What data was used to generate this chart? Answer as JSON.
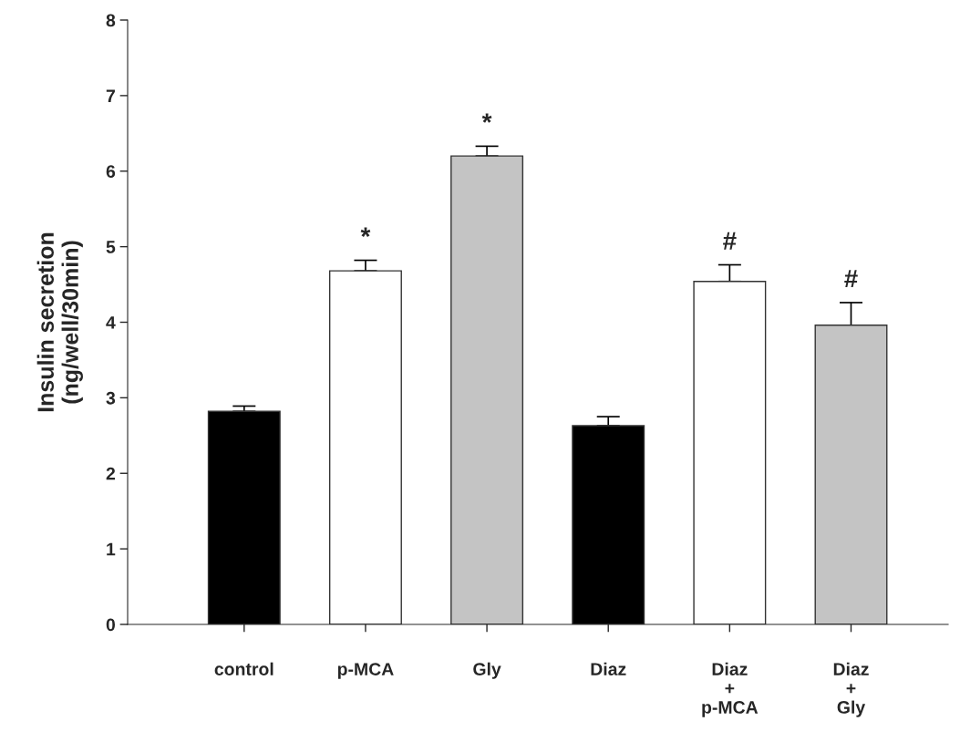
{
  "chart_data": {
    "type": "bar",
    "ylabel": "Insulin secretion\n(ng/well/30min)",
    "categories": [
      "control",
      "p-MCA",
      "Gly",
      "Diaz",
      "Diaz\n+\np-MCA",
      "Diaz\n+\nGly"
    ],
    "values": [
      2.82,
      4.68,
      6.2,
      2.63,
      4.54,
      3.96
    ],
    "errors": [
      0.07,
      0.14,
      0.13,
      0.12,
      0.22,
      0.3
    ],
    "colors": [
      "#000000",
      "#ffffff",
      "#c4c4c4",
      "#000000",
      "#ffffff",
      "#c4c4c4"
    ],
    "ylim": [
      0,
      8
    ],
    "yticks": [
      0,
      1,
      2,
      3,
      4,
      5,
      6,
      7,
      8
    ],
    "value_labels": [
      null,
      "*",
      "*",
      null,
      "#",
      "#"
    ],
    "grid": false
  }
}
